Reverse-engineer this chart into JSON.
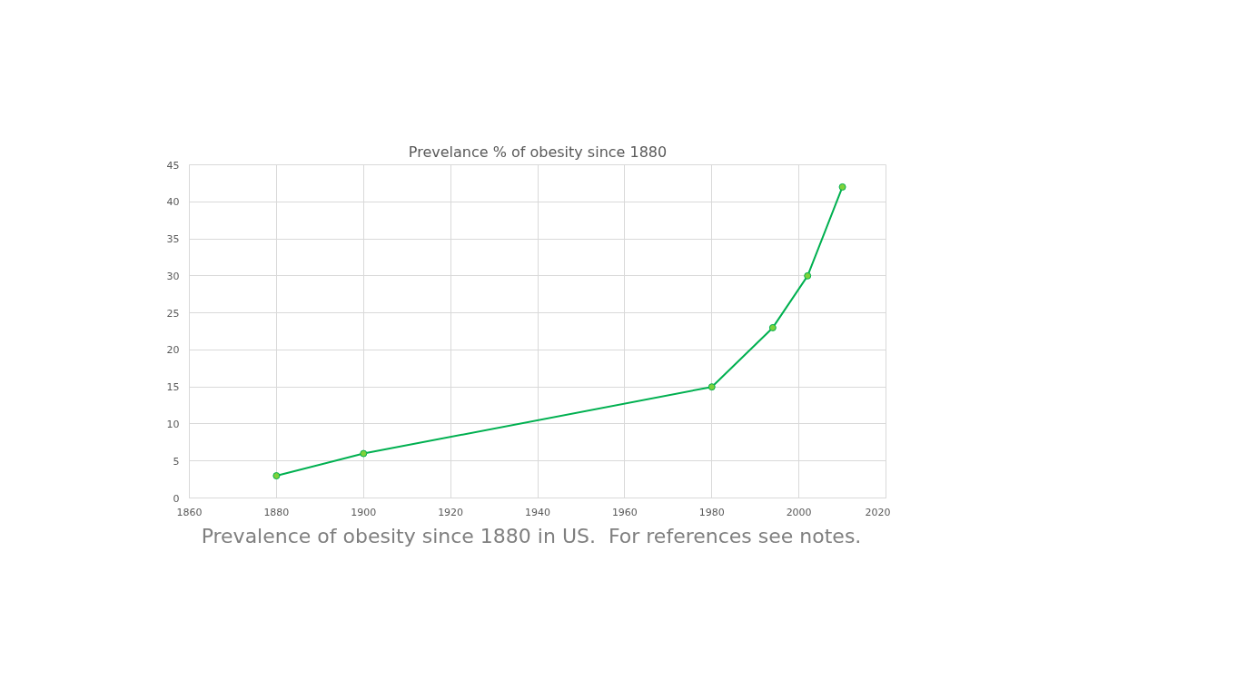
{
  "chart_data": {
    "type": "line",
    "title": "Prevelance % of obesity since 1880",
    "x": [
      1880,
      1900,
      1980,
      1994,
      2002,
      2010
    ],
    "series": [
      {
        "color": "#00b050",
        "values": [
          3,
          6,
          15,
          23,
          30,
          42
        ]
      }
    ],
    "xlim": [
      1860,
      2020
    ],
    "xticks": [
      1860,
      1880,
      1900,
      1920,
      1940,
      1960,
      1980,
      2000,
      2020
    ],
    "ylim": [
      0,
      45
    ],
    "yticks": [
      0,
      5,
      10,
      15,
      20,
      25,
      30,
      35,
      40,
      45
    ],
    "grid": true,
    "marker": "circle",
    "line_style": "solid",
    "annotations": [
      "Prevalence of obesity since 1880 in US.  For references see notes."
    ]
  }
}
